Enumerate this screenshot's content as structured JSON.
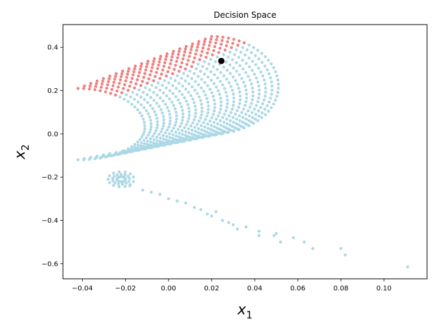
{
  "chart_data": {
    "type": "scatter",
    "title": "Decision Space",
    "xlabel": {
      "base": "x",
      "sub": "1"
    },
    "ylabel": {
      "base": "x",
      "sub": "2"
    },
    "xlim": [
      -0.049,
      0.12
    ],
    "ylim": [
      -0.67,
      0.505
    ],
    "xticks": [
      -0.04,
      -0.02,
      0.0,
      0.02,
      0.04,
      0.06,
      0.08,
      0.1
    ],
    "xtick_labels": [
      "−0.04",
      "−0.02",
      "0.00",
      "0.02",
      "0.04",
      "0.06",
      "0.08",
      "0.10"
    ],
    "yticks": [
      -0.6,
      -0.4,
      -0.2,
      0.0,
      0.2,
      0.4
    ],
    "ytick_labels": [
      "−0.6",
      "−0.4",
      "−0.2",
      "0.0",
      "0.2",
      "0.4"
    ],
    "grid": false,
    "colors": {
      "feasible": "#add8e6",
      "preferred": "#f08080",
      "selected": "#000000"
    },
    "marked_point": {
      "x": 0.0245,
      "y": 0.337
    },
    "arcs": {
      "count": 22,
      "points_per_arc": 38,
      "first_arc": {
        "x_left": -0.042,
        "y_center": 0.03,
        "y_top": 0.21,
        "y_bottom": -0.12
      },
      "last_arc": {
        "x_left": 0.02,
        "y_center": 0.22,
        "y_top": 0.45,
        "y_bottom": 0.0
      },
      "bulge": 0.031,
      "highlight_above": {
        "x0": -0.03,
        "y0": 0.14,
        "slope": 4.2
      }
    },
    "cluster": {
      "x": -0.022,
      "y": -0.21,
      "rx": 0.006,
      "ry": 0.035
    },
    "tail": [
      [
        -0.018,
        -0.24
      ],
      [
        -0.012,
        -0.26
      ],
      [
        -0.008,
        -0.27
      ],
      [
        -0.004,
        -0.28
      ],
      [
        0.0,
        -0.3
      ],
      [
        0.004,
        -0.31
      ],
      [
        0.008,
        -0.32
      ],
      [
        0.012,
        -0.34
      ],
      [
        0.015,
        -0.35
      ],
      [
        0.018,
        -0.37
      ],
      [
        0.02,
        -0.38
      ],
      [
        0.022,
        -0.36
      ],
      [
        0.025,
        -0.4
      ],
      [
        0.028,
        -0.41
      ],
      [
        0.03,
        -0.42
      ],
      [
        0.032,
        -0.44
      ],
      [
        0.036,
        -0.43
      ],
      [
        0.042,
        -0.45
      ],
      [
        0.042,
        -0.47
      ],
      [
        0.049,
        -0.47
      ],
      [
        0.05,
        -0.46
      ],
      [
        0.052,
        -0.5
      ],
      [
        0.058,
        -0.48
      ],
      [
        0.063,
        -0.5
      ],
      [
        0.067,
        -0.53
      ],
      [
        0.08,
        -0.53
      ],
      [
        0.082,
        -0.56
      ],
      [
        0.111,
        -0.615
      ]
    ]
  }
}
